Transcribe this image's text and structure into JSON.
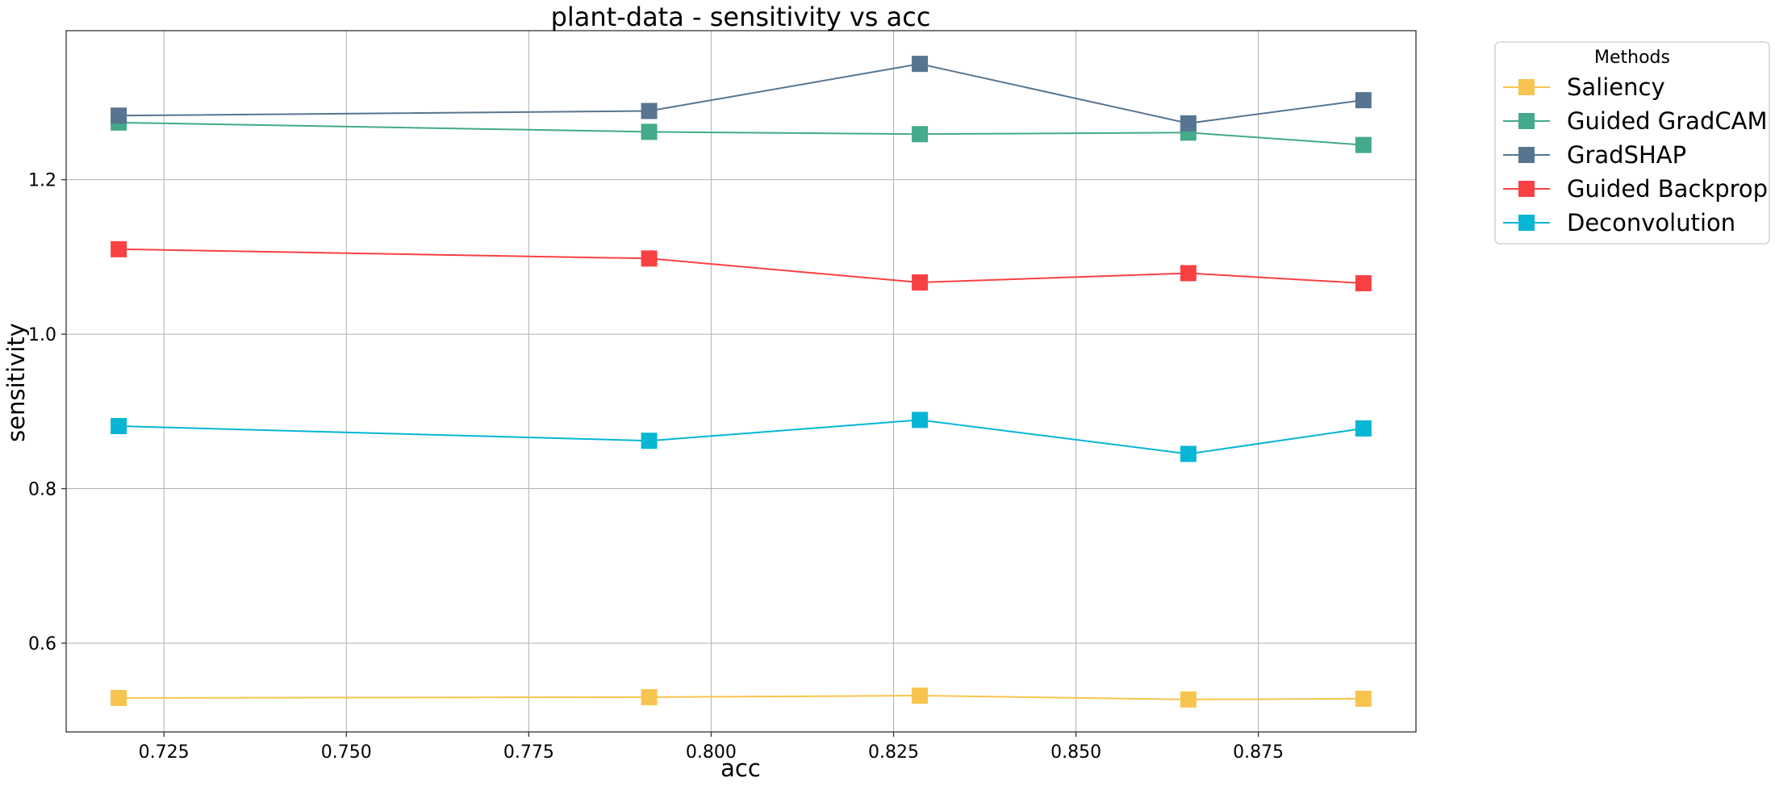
{
  "chart_data": {
    "type": "line",
    "title": "plant-data - sensitivity vs acc",
    "xlabel": "acc",
    "ylabel": "sensitivity",
    "xlim": [
      0.7116,
      0.8966
    ],
    "ylim": [
      0.485,
      1.393
    ],
    "x_ticks": [
      "0.725",
      "0.750",
      "0.775",
      "0.800",
      "0.825",
      "0.850",
      "0.875"
    ],
    "y_ticks": [
      "0.6",
      "0.8",
      "1.0",
      "1.2"
    ],
    "grid": true,
    "legend_title": "Methods",
    "legend_position": "outside-top-right",
    "x": [
      0.7188,
      0.7915,
      0.8286,
      0.8654,
      0.8894
    ],
    "series": [
      {
        "name": "Saliency",
        "color": "#f7c44f",
        "marker": "square",
        "values": [
          0.529,
          0.53,
          0.532,
          0.527,
          0.528
        ]
      },
      {
        "name": "Guided GradCAM",
        "color": "#43aa8b",
        "marker": "square",
        "values": [
          1.274,
          1.262,
          1.259,
          1.261,
          1.245
        ]
      },
      {
        "name": "GradSHAP",
        "color": "#577590",
        "marker": "square",
        "values": [
          1.283,
          1.289,
          1.35,
          1.273,
          1.303
        ]
      },
      {
        "name": "Guided Backprop",
        "color": "#f94144",
        "marker": "square",
        "values": [
          1.11,
          1.098,
          1.067,
          1.079,
          1.066
        ]
      },
      {
        "name": "Deconvolution",
        "color": "#06b6d4",
        "marker": "square",
        "values": [
          0.881,
          0.862,
          0.889,
          0.845,
          0.878
        ]
      }
    ]
  }
}
